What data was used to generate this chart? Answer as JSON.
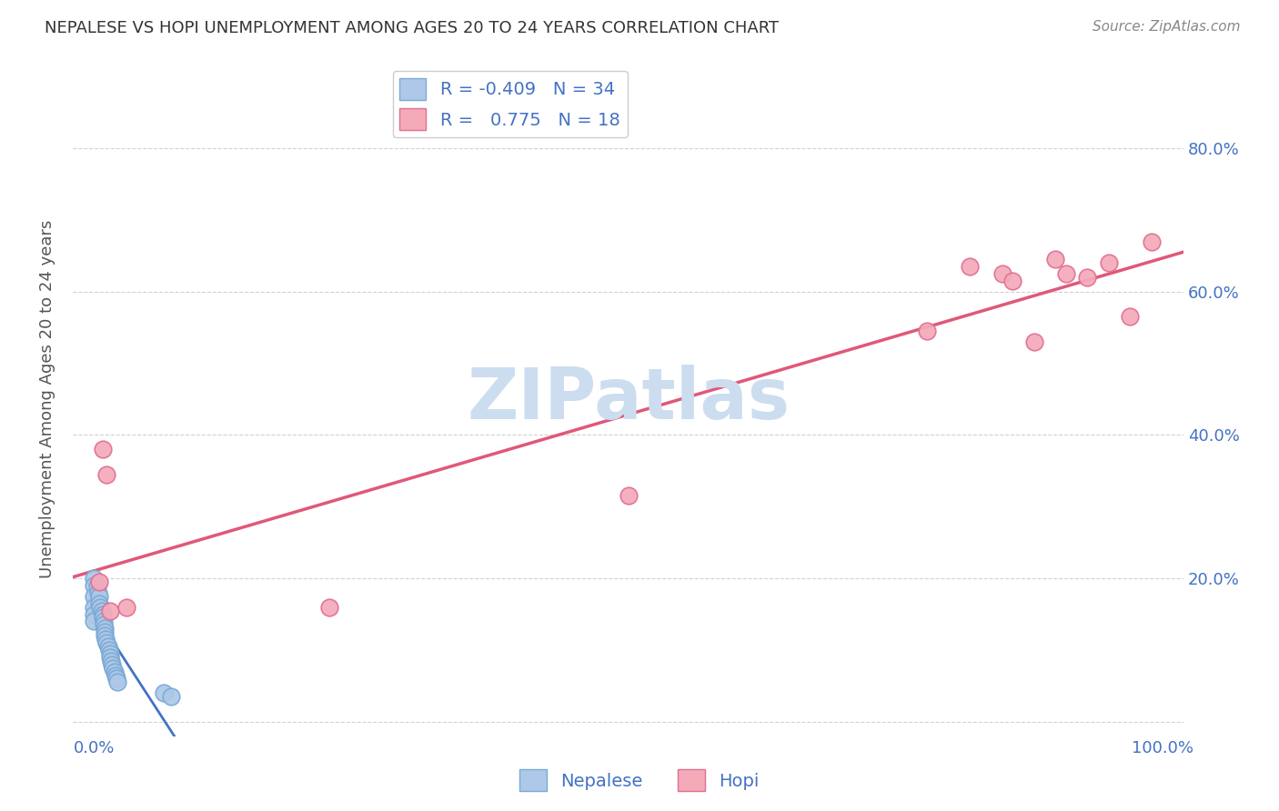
{
  "title": "NEPALESE VS HOPI UNEMPLOYMENT AMONG AGES 20 TO 24 YEARS CORRELATION CHART",
  "source": "Source: ZipAtlas.com",
  "ylabel": "Unemployment Among Ages 20 to 24 years",
  "xlim": [
    -0.02,
    1.02
  ],
  "ylim": [
    -0.02,
    0.92
  ],
  "xtick_positions": [
    0.0,
    0.1,
    0.2,
    0.3,
    0.4,
    0.5,
    0.6,
    0.7,
    0.8,
    0.9,
    1.0
  ],
  "xticklabels": [
    "0.0%",
    "",
    "",
    "",
    "",
    "",
    "",
    "",
    "",
    "",
    "100.0%"
  ],
  "ytick_positions": [
    0.0,
    0.2,
    0.4,
    0.6,
    0.8
  ],
  "yticklabels": [
    "",
    "20.0%",
    "40.0%",
    "60.0%",
    "80.0%"
  ],
  "nepalese_color": "#adc8e8",
  "nepalese_edge": "#7aaad4",
  "hopi_color": "#f5aaba",
  "hopi_edge": "#e07090",
  "nepalese_R": -0.409,
  "nepalese_N": 34,
  "hopi_R": 0.775,
  "hopi_N": 18,
  "nepalese_x": [
    0.0,
    0.0,
    0.0,
    0.0,
    0.0,
    0.0,
    0.003,
    0.004,
    0.005,
    0.005,
    0.006,
    0.007,
    0.008,
    0.008,
    0.009,
    0.009,
    0.01,
    0.01,
    0.01,
    0.011,
    0.012,
    0.013,
    0.014,
    0.015,
    0.015,
    0.016,
    0.017,
    0.018,
    0.019,
    0.02,
    0.021,
    0.022,
    0.065,
    0.072
  ],
  "nepalese_y": [
    0.2,
    0.19,
    0.175,
    0.16,
    0.15,
    0.14,
    0.19,
    0.18,
    0.175,
    0.165,
    0.16,
    0.155,
    0.15,
    0.145,
    0.14,
    0.135,
    0.13,
    0.125,
    0.12,
    0.115,
    0.11,
    0.105,
    0.1,
    0.095,
    0.09,
    0.085,
    0.08,
    0.075,
    0.07,
    0.065,
    0.06,
    0.055,
    0.04,
    0.035
  ],
  "hopi_x": [
    0.005,
    0.008,
    0.012,
    0.015,
    0.03,
    0.22,
    0.5,
    0.78,
    0.82,
    0.85,
    0.86,
    0.88,
    0.9,
    0.91,
    0.93,
    0.95,
    0.97,
    0.99
  ],
  "hopi_y": [
    0.195,
    0.38,
    0.345,
    0.155,
    0.16,
    0.16,
    0.315,
    0.545,
    0.635,
    0.625,
    0.615,
    0.53,
    0.645,
    0.625,
    0.62,
    0.64,
    0.565,
    0.67
  ],
  "background_color": "#ffffff",
  "grid_color": "#cccccc",
  "watermark": "ZIPatlas",
  "watermark_color": "#ccddf0",
  "line_nepalese_color": "#4472c4",
  "line_hopi_color": "#e05878",
  "tick_label_color": "#4472c4",
  "title_color": "#333333",
  "source_color": "#888888",
  "ylabel_color": "#555555"
}
